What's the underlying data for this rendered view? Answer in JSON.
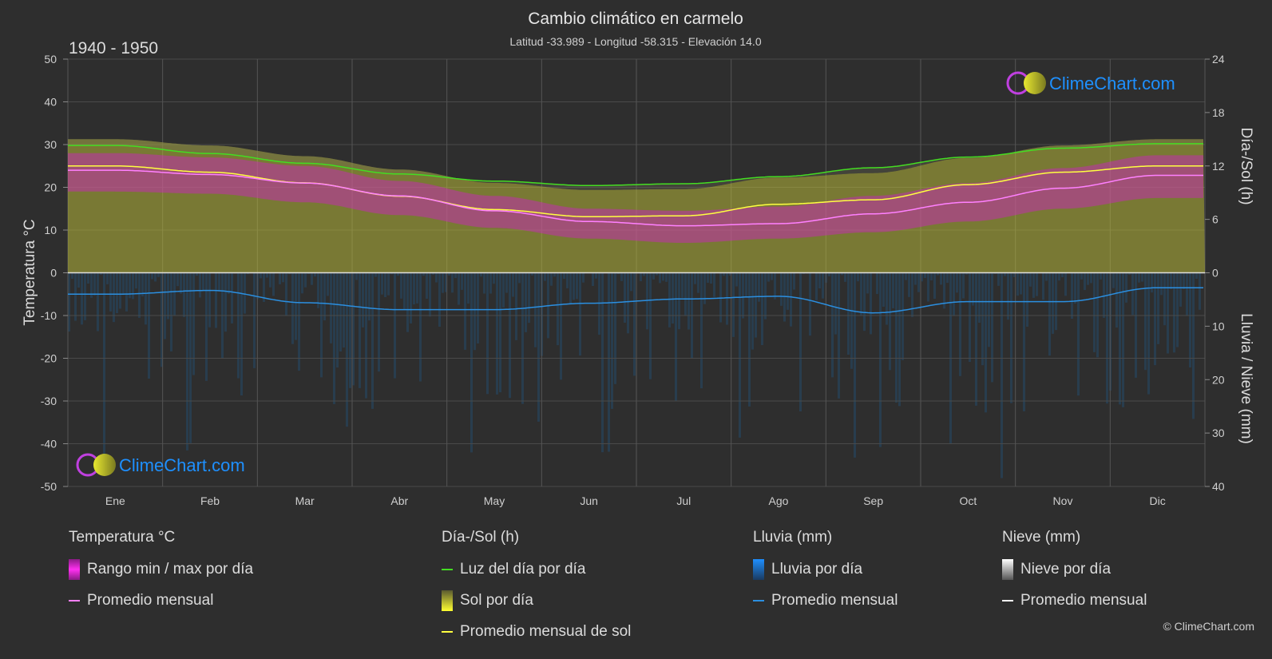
{
  "header": {
    "title": "Cambio climático en carmelo",
    "subtitle": "Latitud -33.989 - Longitud -58.315 - Elevación 14.0",
    "period": "1940 - 1950"
  },
  "brand": {
    "logo_text": "ClimeChart.com",
    "copyright": "© ClimeChart.com"
  },
  "colors": {
    "background": "#2e2e2e",
    "temp_range": "#d020c8",
    "temp_avg": "#ff80ff",
    "daylight": "#44dd22",
    "sunshine": "#b8b83a",
    "sunshine_avg": "#ffff40",
    "rain": "#1e5a8a",
    "rain_avg": "#2b8fe0",
    "snow_avg": "#ffffff",
    "brand": "#1e90ff"
  },
  "chart_data": {
    "type": "line",
    "title": "Cambio climático en carmelo",
    "categories": [
      "Ene",
      "Feb",
      "Mar",
      "Abr",
      "May",
      "Jun",
      "Jul",
      "Ago",
      "Sep",
      "Oct",
      "Nov",
      "Dic"
    ],
    "y_left": {
      "label": "Temperatura °C",
      "range": [
        -50,
        50
      ],
      "ticks": [
        "50",
        "40",
        "30",
        "20",
        "10",
        "0",
        "-10",
        "-20",
        "-30",
        "-40",
        "-50"
      ]
    },
    "y_right_top": {
      "label": "Día-/Sol (h)",
      "range": [
        0,
        24
      ],
      "ticks": [
        "24",
        "18",
        "12",
        "6",
        "0"
      ]
    },
    "y_right_bottom": {
      "label": "Lluvia / Nieve (mm)",
      "range": [
        0,
        40
      ],
      "ticks": [
        "0",
        "10",
        "20",
        "30",
        "40"
      ]
    },
    "series": [
      {
        "name": "Luz del día por día",
        "axis": "hours",
        "values": [
          14.3,
          13.4,
          12.3,
          11.1,
          10.3,
          9.8,
          10.0,
          10.8,
          11.8,
          13.0,
          14.0,
          14.5
        ]
      },
      {
        "name": "Promedio mensual de sol",
        "axis": "hours",
        "values": [
          12.0,
          11.3,
          10.1,
          8.6,
          7.1,
          6.3,
          6.4,
          7.7,
          8.2,
          9.9,
          11.3,
          12.0
        ]
      },
      {
        "name": "Promedio mensual",
        "group": "Temperatura °C",
        "axis": "temperature",
        "values": [
          24.0,
          23.0,
          21.0,
          18.0,
          14.5,
          12.0,
          11.0,
          11.5,
          13.8,
          16.5,
          19.8,
          22.8
        ]
      },
      {
        "name": "Temperatura max",
        "axis": "temperature",
        "values": [
          28.0,
          27.0,
          25.0,
          21.5,
          18.0,
          15.0,
          14.5,
          15.5,
          18.0,
          21.0,
          24.5,
          27.5
        ]
      },
      {
        "name": "Temperatura min",
        "axis": "temperature",
        "values": [
          19.0,
          18.5,
          16.5,
          13.5,
          10.5,
          8.0,
          7.0,
          8.0,
          9.5,
          12.0,
          15.0,
          17.5
        ]
      },
      {
        "name": "Promedio mensual",
        "group": "Lluvia (mm)",
        "axis": "rain",
        "values": [
          4.0,
          3.3,
          5.6,
          6.9,
          6.9,
          5.7,
          4.9,
          4.4,
          7.5,
          5.4,
          5.4,
          2.8
        ]
      }
    ],
    "grid": true
  },
  "legend": {
    "temperature": {
      "title": "Temperatura °C",
      "items": [
        "Rango min / max por día",
        "Promedio mensual"
      ]
    },
    "sun": {
      "title": "Día-/Sol (h)",
      "items": [
        "Luz del día por día",
        "Sol por día",
        "Promedio mensual de sol"
      ]
    },
    "rain": {
      "title": "Lluvia (mm)",
      "items": [
        "Lluvia por día",
        "Promedio mensual"
      ]
    },
    "snow": {
      "title": "Nieve (mm)",
      "items": [
        "Nieve por día",
        "Promedio mensual"
      ]
    }
  }
}
